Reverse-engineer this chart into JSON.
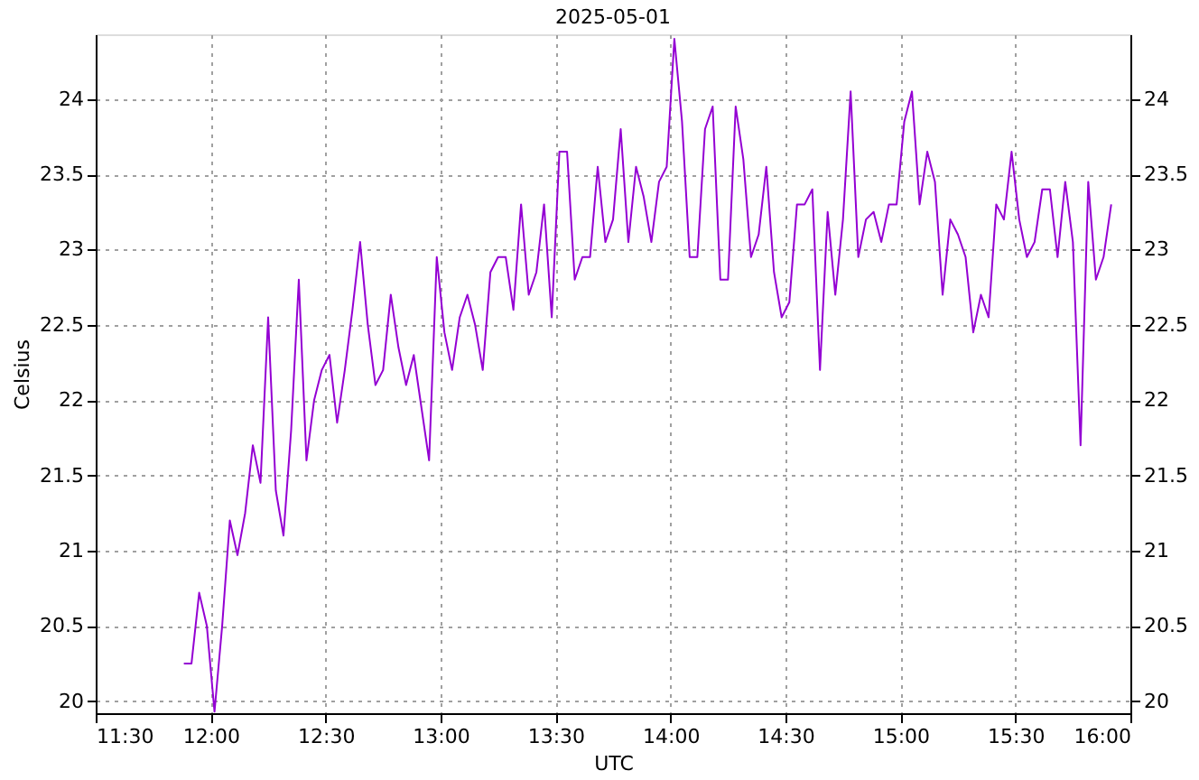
{
  "chart_data": {
    "type": "line",
    "title": "2025-05-01",
    "xlabel": "UTC",
    "ylabel": "Celsius",
    "x": [
      "2025-05-01T11:53",
      "2025-05-01T11:55",
      "2025-05-01T11:57",
      "2025-05-01T11:59",
      "2025-05-01T12:01",
      "2025-05-01T12:03",
      "2025-05-01T12:05",
      "2025-05-01T12:07",
      "2025-05-01T12:09",
      "2025-05-01T12:11",
      "2025-05-01T12:13",
      "2025-05-01T12:15",
      "2025-05-01T12:17",
      "2025-05-01T12:19",
      "2025-05-01T12:21",
      "2025-05-01T12:23",
      "2025-05-01T12:25",
      "2025-05-01T12:27",
      "2025-05-01T12:29",
      "2025-05-01T12:31",
      "2025-05-01T12:33",
      "2025-05-01T12:35",
      "2025-05-01T12:37",
      "2025-05-01T12:39",
      "2025-05-01T12:41",
      "2025-05-01T12:43",
      "2025-05-01T12:45",
      "2025-05-01T12:47",
      "2025-05-01T12:49",
      "2025-05-01T12:51",
      "2025-05-01T12:53",
      "2025-05-01T12:55",
      "2025-05-01T12:57",
      "2025-05-01T12:59",
      "2025-05-01T13:01",
      "2025-05-01T13:03",
      "2025-05-01T13:05",
      "2025-05-01T13:07",
      "2025-05-01T13:09",
      "2025-05-01T13:11",
      "2025-05-01T13:13",
      "2025-05-01T13:15",
      "2025-05-01T13:17",
      "2025-05-01T13:19",
      "2025-05-01T13:21",
      "2025-05-01T13:23",
      "2025-05-01T13:25",
      "2025-05-01T13:27",
      "2025-05-01T13:29",
      "2025-05-01T13:31",
      "2025-05-01T13:33",
      "2025-05-01T13:35",
      "2025-05-01T13:37",
      "2025-05-01T13:39",
      "2025-05-01T13:41",
      "2025-05-01T13:43",
      "2025-05-01T13:45",
      "2025-05-01T13:47",
      "2025-05-01T13:49",
      "2025-05-01T13:51",
      "2025-05-01T13:53",
      "2025-05-01T13:55",
      "2025-05-01T13:57",
      "2025-05-01T13:59",
      "2025-05-01T14:01",
      "2025-05-01T14:03",
      "2025-05-01T14:05",
      "2025-05-01T14:07",
      "2025-05-01T14:09",
      "2025-05-01T14:11",
      "2025-05-01T14:13",
      "2025-05-01T14:15",
      "2025-05-01T14:17",
      "2025-05-01T14:19",
      "2025-05-01T14:21",
      "2025-05-01T14:23",
      "2025-05-01T14:25",
      "2025-05-01T14:27",
      "2025-05-01T14:29",
      "2025-05-01T14:31",
      "2025-05-01T14:33",
      "2025-05-01T14:35",
      "2025-05-01T14:37",
      "2025-05-01T14:39",
      "2025-05-01T14:41",
      "2025-05-01T14:43",
      "2025-05-01T14:45",
      "2025-05-01T14:47",
      "2025-05-01T14:49",
      "2025-05-01T14:51",
      "2025-05-01T14:53",
      "2025-05-01T14:55",
      "2025-05-01T14:57",
      "2025-05-01T14:59",
      "2025-05-01T15:01",
      "2025-05-01T15:03",
      "2025-05-01T15:05",
      "2025-05-01T15:07",
      "2025-05-01T15:09",
      "2025-05-01T15:11",
      "2025-05-01T15:13",
      "2025-05-01T15:15",
      "2025-05-01T15:17",
      "2025-05-01T15:19",
      "2025-05-01T15:21",
      "2025-05-01T15:23",
      "2025-05-01T15:25",
      "2025-05-01T15:27",
      "2025-05-01T15:29",
      "2025-05-01T15:31",
      "2025-05-01T15:33",
      "2025-05-01T15:35",
      "2025-05-01T15:37",
      "2025-05-01T15:39",
      "2025-05-01T15:41",
      "2025-05-01T15:43",
      "2025-05-01T15:45",
      "2025-05-01T15:47",
      "2025-05-01T15:49",
      "2025-05-01T15:51",
      "2025-05-01T15:53",
      "2025-05-01T15:55"
    ],
    "series": [
      {
        "color": "#9400d3",
        "values": [
          20.25,
          20.25,
          20.72,
          20.5,
          19.93,
          20.5,
          21.2,
          20.97,
          21.25,
          21.7,
          21.45,
          22.55,
          21.4,
          21.1,
          21.8,
          22.8,
          21.6,
          22.0,
          22.2,
          22.3,
          21.85,
          22.2,
          22.6,
          23.05,
          22.5,
          22.1,
          22.2,
          22.7,
          22.35,
          22.1,
          22.3,
          21.95,
          21.6,
          22.95,
          22.45,
          22.2,
          22.55,
          22.7,
          22.5,
          22.2,
          22.85,
          22.95,
          22.95,
          22.6,
          23.3,
          22.7,
          22.85,
          23.3,
          22.55,
          23.65,
          23.65,
          22.8,
          22.95,
          22.95,
          23.55,
          23.05,
          23.2,
          23.8,
          23.05,
          23.55,
          23.35,
          23.05,
          23.45,
          23.55,
          24.4,
          23.85,
          22.95,
          22.95,
          23.8,
          23.95,
          22.8,
          22.8,
          23.95,
          23.6,
          22.95,
          23.1,
          23.55,
          22.85,
          22.55,
          22.65,
          23.3,
          23.3,
          23.4,
          22.2,
          23.25,
          22.7,
          23.2,
          24.05,
          22.95,
          23.2,
          23.25,
          23.05,
          23.3,
          23.3,
          23.85,
          24.05,
          23.3,
          23.65,
          23.45,
          22.7,
          23.2,
          23.1,
          22.95,
          22.45,
          22.7,
          22.55,
          23.3,
          23.2,
          23.65,
          23.2,
          22.95,
          23.05,
          23.4,
          23.4,
          22.95,
          23.45,
          23.05,
          21.7,
          23.45,
          22.8,
          22.95,
          23.3
        ]
      }
    ],
    "xlim": [
      "2025-05-01T11:30",
      "2025-05-01T16:00"
    ],
    "xticks": [
      {
        "value": "2025-05-01T11:30",
        "label": "11:30"
      },
      {
        "value": "2025-05-01T12:00",
        "label": "12:00"
      },
      {
        "value": "2025-05-01T12:30",
        "label": "12:30"
      },
      {
        "value": "2025-05-01T13:00",
        "label": "13:00"
      },
      {
        "value": "2025-05-01T13:30",
        "label": "13:30"
      },
      {
        "value": "2025-05-01T14:00",
        "label": "14:00"
      },
      {
        "value": "2025-05-01T14:30",
        "label": "14:30"
      },
      {
        "value": "2025-05-01T15:00",
        "label": "15:00"
      },
      {
        "value": "2025-05-01T15:30",
        "label": "15:30"
      },
      {
        "value": "2025-05-01T16:00",
        "label": "16:00"
      }
    ],
    "ylim": [
      19.92,
      24.43
    ],
    "yticks": [
      20,
      20.5,
      21,
      21.5,
      22,
      22.5,
      23,
      23.5,
      24
    ],
    "y2lim": [
      19.92,
      24.43
    ],
    "y2ticks": [
      20,
      20.5,
      21,
      21.5,
      22,
      22.5,
      23,
      23.5,
      24
    ],
    "grid": true
  }
}
